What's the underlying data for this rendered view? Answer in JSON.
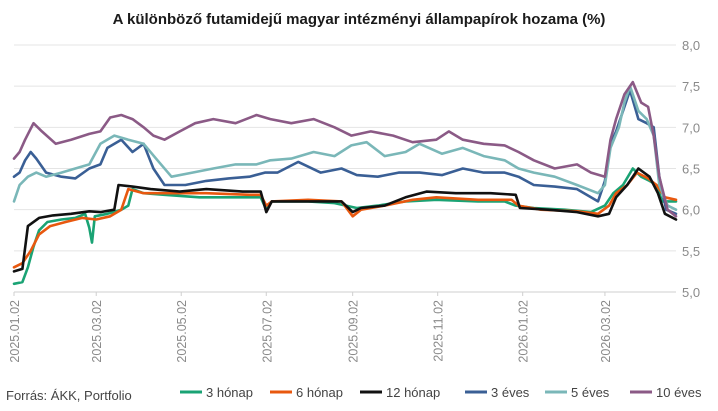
{
  "chart_data": {
    "type": "line",
    "title": "A különböző futamidejű magyar intézményi állampapírok hozama (%)",
    "source": "Forrás: ÁKK, Portfolio",
    "ylim": [
      5.0,
      8.0
    ],
    "y_ticks": [
      "5,0",
      "5,5",
      "6,0",
      "6,5",
      "7,0",
      "7,5",
      "8,0"
    ],
    "x_ticks": [
      "2025.01.02",
      "2025.03.02",
      "2025.05.02",
      "2025.07.02",
      "2025.09.02",
      "2025.11.02",
      "2026.01.02",
      "2026.03.02"
    ],
    "x_domain": [
      "2025-01-02",
      "2026-04-22"
    ],
    "grid": true,
    "y_axis_side": "right",
    "legend_position": "bottom",
    "series": [
      {
        "name": "3 hónap",
        "color": "#1aa374",
        "points": [
          [
            "2025-01-02",
            5.1
          ],
          [
            "2025-01-08",
            5.12
          ],
          [
            "2025-01-12",
            5.3
          ],
          [
            "2025-01-16",
            5.55
          ],
          [
            "2025-01-20",
            5.75
          ],
          [
            "2025-01-26",
            5.85
          ],
          [
            "2025-02-05",
            5.88
          ],
          [
            "2025-02-15",
            5.9
          ],
          [
            "2025-02-22",
            5.95
          ],
          [
            "2025-02-25",
            5.78
          ],
          [
            "2025-02-27",
            5.6
          ],
          [
            "2025-03-01",
            5.92
          ],
          [
            "2025-03-10",
            5.95
          ],
          [
            "2025-03-20",
            6.0
          ],
          [
            "2025-03-25",
            6.05
          ],
          [
            "2025-03-28",
            6.25
          ],
          [
            "2025-04-05",
            6.2
          ],
          [
            "2025-04-20",
            6.18
          ],
          [
            "2025-05-15",
            6.15
          ],
          [
            "2025-06-15",
            6.15
          ],
          [
            "2025-06-28",
            6.15
          ],
          [
            "2025-07-02",
            6.0
          ],
          [
            "2025-07-06",
            6.1
          ],
          [
            "2025-08-01",
            6.1
          ],
          [
            "2025-08-20",
            6.08
          ],
          [
            "2025-09-05",
            6.02
          ],
          [
            "2025-09-20",
            6.05
          ],
          [
            "2025-10-10",
            6.1
          ],
          [
            "2025-11-01",
            6.12
          ],
          [
            "2025-12-01",
            6.1
          ],
          [
            "2025-12-20",
            6.1
          ],
          [
            "2025-12-28",
            6.05
          ],
          [
            "2026-01-10",
            6.02
          ],
          [
            "2026-02-01",
            6.0
          ],
          [
            "2026-02-20",
            5.97
          ],
          [
            "2026-03-02",
            6.05
          ],
          [
            "2026-03-08",
            6.2
          ],
          [
            "2026-03-15",
            6.3
          ],
          [
            "2026-03-22",
            6.5
          ],
          [
            "2026-03-28",
            6.4
          ],
          [
            "2026-04-03",
            6.35
          ],
          [
            "2026-04-08",
            6.3
          ],
          [
            "2026-04-12",
            6.1
          ],
          [
            "2026-04-22",
            6.1
          ]
        ]
      },
      {
        "name": "6 hónap",
        "color": "#e8580f",
        "points": [
          [
            "2025-01-02",
            5.3
          ],
          [
            "2025-01-08",
            5.35
          ],
          [
            "2025-01-14",
            5.5
          ],
          [
            "2025-01-20",
            5.7
          ],
          [
            "2025-01-28",
            5.8
          ],
          [
            "2025-02-08",
            5.85
          ],
          [
            "2025-02-20",
            5.9
          ],
          [
            "2025-03-02",
            5.88
          ],
          [
            "2025-03-12",
            5.92
          ],
          [
            "2025-03-20",
            6.0
          ],
          [
            "2025-03-25",
            6.25
          ],
          [
            "2025-04-05",
            6.2
          ],
          [
            "2025-04-25",
            6.2
          ],
          [
            "2025-05-20",
            6.2
          ],
          [
            "2025-06-20",
            6.18
          ],
          [
            "2025-06-28",
            6.18
          ],
          [
            "2025-07-02",
            6.05
          ],
          [
            "2025-07-06",
            6.1
          ],
          [
            "2025-08-01",
            6.12
          ],
          [
            "2025-08-25",
            6.1
          ],
          [
            "2025-09-02",
            5.92
          ],
          [
            "2025-09-08",
            6.0
          ],
          [
            "2025-09-25",
            6.05
          ],
          [
            "2025-10-15",
            6.12
          ],
          [
            "2025-11-01",
            6.15
          ],
          [
            "2025-12-01",
            6.12
          ],
          [
            "2025-12-25",
            6.12
          ],
          [
            "2025-12-30",
            6.05
          ],
          [
            "2026-01-15",
            6.0
          ],
          [
            "2026-02-10",
            5.98
          ],
          [
            "2026-02-25",
            5.95
          ],
          [
            "2026-03-05",
            6.05
          ],
          [
            "2026-03-10",
            6.2
          ],
          [
            "2026-03-18",
            6.3
          ],
          [
            "2026-03-25",
            6.45
          ],
          [
            "2026-04-02",
            6.38
          ],
          [
            "2026-04-08",
            6.3
          ],
          [
            "2026-04-14",
            6.15
          ],
          [
            "2026-04-22",
            6.12
          ]
        ]
      },
      {
        "name": "12 hónap",
        "color": "#111111",
        "points": [
          [
            "2025-01-02",
            5.25
          ],
          [
            "2025-01-08",
            5.28
          ],
          [
            "2025-01-12",
            5.8
          ],
          [
            "2025-01-20",
            5.9
          ],
          [
            "2025-01-30",
            5.93
          ],
          [
            "2025-02-12",
            5.95
          ],
          [
            "2025-02-25",
            5.98
          ],
          [
            "2025-03-05",
            5.97
          ],
          [
            "2025-03-15",
            6.0
          ],
          [
            "2025-03-18",
            6.3
          ],
          [
            "2025-03-28",
            6.28
          ],
          [
            "2025-04-10",
            6.25
          ],
          [
            "2025-05-01",
            6.22
          ],
          [
            "2025-05-20",
            6.25
          ],
          [
            "2025-06-15",
            6.22
          ],
          [
            "2025-06-28",
            6.22
          ],
          [
            "2025-07-02",
            5.97
          ],
          [
            "2025-07-06",
            6.1
          ],
          [
            "2025-08-01",
            6.1
          ],
          [
            "2025-08-25",
            6.1
          ],
          [
            "2025-09-02",
            5.97
          ],
          [
            "2025-09-08",
            6.02
          ],
          [
            "2025-09-25",
            6.05
          ],
          [
            "2025-10-10",
            6.15
          ],
          [
            "2025-10-25",
            6.22
          ],
          [
            "2025-11-15",
            6.2
          ],
          [
            "2025-12-10",
            6.2
          ],
          [
            "2025-12-28",
            6.18
          ],
          [
            "2025-12-31",
            6.02
          ],
          [
            "2026-01-20",
            6.0
          ],
          [
            "2026-02-10",
            5.97
          ],
          [
            "2026-02-25",
            5.92
          ],
          [
            "2026-03-05",
            5.95
          ],
          [
            "2026-03-10",
            6.15
          ],
          [
            "2026-03-18",
            6.3
          ],
          [
            "2026-03-26",
            6.5
          ],
          [
            "2026-04-03",
            6.4
          ],
          [
            "2026-04-09",
            6.2
          ],
          [
            "2026-04-14",
            5.95
          ],
          [
            "2026-04-22",
            5.88
          ]
        ]
      },
      {
        "name": "3 éves",
        "color": "#3a5f95",
        "points": [
          [
            "2025-01-02",
            6.4
          ],
          [
            "2025-01-06",
            6.45
          ],
          [
            "2025-01-10",
            6.6
          ],
          [
            "2025-01-14",
            6.7
          ],
          [
            "2025-01-18",
            6.62
          ],
          [
            "2025-01-25",
            6.45
          ],
          [
            "2025-02-05",
            6.4
          ],
          [
            "2025-02-15",
            6.38
          ],
          [
            "2025-02-25",
            6.5
          ],
          [
            "2025-03-05",
            6.55
          ],
          [
            "2025-03-10",
            6.75
          ],
          [
            "2025-03-20",
            6.85
          ],
          [
            "2025-03-28",
            6.7
          ],
          [
            "2025-04-05",
            6.8
          ],
          [
            "2025-04-12",
            6.5
          ],
          [
            "2025-04-20",
            6.3
          ],
          [
            "2025-05-05",
            6.3
          ],
          [
            "2025-05-20",
            6.35
          ],
          [
            "2025-06-05",
            6.38
          ],
          [
            "2025-06-20",
            6.4
          ],
          [
            "2025-07-01",
            6.45
          ],
          [
            "2025-07-10",
            6.45
          ],
          [
            "2025-07-25",
            6.58
          ],
          [
            "2025-08-10",
            6.45
          ],
          [
            "2025-08-25",
            6.5
          ],
          [
            "2025-09-05",
            6.42
          ],
          [
            "2025-09-20",
            6.4
          ],
          [
            "2025-10-05",
            6.45
          ],
          [
            "2025-10-20",
            6.45
          ],
          [
            "2025-11-05",
            6.42
          ],
          [
            "2025-11-20",
            6.5
          ],
          [
            "2025-12-05",
            6.45
          ],
          [
            "2025-12-20",
            6.45
          ],
          [
            "2025-12-30",
            6.4
          ],
          [
            "2026-01-10",
            6.3
          ],
          [
            "2026-01-25",
            6.28
          ],
          [
            "2026-02-10",
            6.25
          ],
          [
            "2026-02-25",
            6.1
          ],
          [
            "2026-03-02",
            6.35
          ],
          [
            "2026-03-06",
            6.8
          ],
          [
            "2026-03-10",
            6.95
          ],
          [
            "2026-03-16",
            7.25
          ],
          [
            "2026-03-20",
            7.45
          ],
          [
            "2026-03-26",
            7.1
          ],
          [
            "2026-04-01",
            7.05
          ],
          [
            "2026-04-06",
            7.0
          ],
          [
            "2026-04-10",
            6.4
          ],
          [
            "2026-04-15",
            6.0
          ],
          [
            "2026-04-22",
            5.95
          ]
        ]
      },
      {
        "name": "5 éves",
        "color": "#7ab7b8",
        "points": [
          [
            "2025-01-02",
            6.1
          ],
          [
            "2025-01-06",
            6.3
          ],
          [
            "2025-01-12",
            6.4
          ],
          [
            "2025-01-18",
            6.45
          ],
          [
            "2025-01-25",
            6.4
          ],
          [
            "2025-02-05",
            6.45
          ],
          [
            "2025-02-15",
            6.5
          ],
          [
            "2025-02-25",
            6.55
          ],
          [
            "2025-03-05",
            6.8
          ],
          [
            "2025-03-15",
            6.9
          ],
          [
            "2025-03-25",
            6.85
          ],
          [
            "2025-04-05",
            6.8
          ],
          [
            "2025-04-15",
            6.6
          ],
          [
            "2025-04-25",
            6.4
          ],
          [
            "2025-05-10",
            6.45
          ],
          [
            "2025-05-25",
            6.5
          ],
          [
            "2025-06-10",
            6.55
          ],
          [
            "2025-06-25",
            6.55
          ],
          [
            "2025-07-05",
            6.6
          ],
          [
            "2025-07-20",
            6.62
          ],
          [
            "2025-08-05",
            6.7
          ],
          [
            "2025-08-20",
            6.65
          ],
          [
            "2025-09-01",
            6.78
          ],
          [
            "2025-09-12",
            6.82
          ],
          [
            "2025-09-25",
            6.65
          ],
          [
            "2025-10-10",
            6.7
          ],
          [
            "2025-10-20",
            6.8
          ],
          [
            "2025-11-05",
            6.68
          ],
          [
            "2025-11-20",
            6.75
          ],
          [
            "2025-12-05",
            6.65
          ],
          [
            "2025-12-20",
            6.6
          ],
          [
            "2025-12-30",
            6.5
          ],
          [
            "2026-01-10",
            6.45
          ],
          [
            "2026-01-25",
            6.4
          ],
          [
            "2026-02-10",
            6.3
          ],
          [
            "2026-02-25",
            6.2
          ],
          [
            "2026-03-02",
            6.3
          ],
          [
            "2026-03-06",
            6.75
          ],
          [
            "2026-03-12",
            7.0
          ],
          [
            "2026-03-16",
            7.3
          ],
          [
            "2026-03-20",
            7.5
          ],
          [
            "2026-03-26",
            7.2
          ],
          [
            "2026-04-01",
            7.1
          ],
          [
            "2026-04-06",
            6.9
          ],
          [
            "2026-04-10",
            6.3
          ],
          [
            "2026-04-16",
            6.05
          ],
          [
            "2026-04-22",
            6.0
          ]
        ]
      },
      {
        "name": "10 éves",
        "color": "#8b5a86",
        "points": [
          [
            "2025-01-02",
            6.62
          ],
          [
            "2025-01-06",
            6.7
          ],
          [
            "2025-01-10",
            6.85
          ],
          [
            "2025-01-16",
            7.05
          ],
          [
            "2025-01-22",
            6.95
          ],
          [
            "2025-02-01",
            6.8
          ],
          [
            "2025-02-12",
            6.85
          ],
          [
            "2025-02-25",
            6.92
          ],
          [
            "2025-03-05",
            6.95
          ],
          [
            "2025-03-12",
            7.12
          ],
          [
            "2025-03-20",
            7.15
          ],
          [
            "2025-03-28",
            7.1
          ],
          [
            "2025-04-05",
            7.0
          ],
          [
            "2025-04-12",
            6.9
          ],
          [
            "2025-04-20",
            6.85
          ],
          [
            "2025-05-01",
            6.95
          ],
          [
            "2025-05-12",
            7.05
          ],
          [
            "2025-05-25",
            7.1
          ],
          [
            "2025-06-10",
            7.05
          ],
          [
            "2025-06-25",
            7.15
          ],
          [
            "2025-07-05",
            7.1
          ],
          [
            "2025-07-20",
            7.05
          ],
          [
            "2025-08-05",
            7.1
          ],
          [
            "2025-08-20",
            7.0
          ],
          [
            "2025-09-01",
            6.9
          ],
          [
            "2025-09-15",
            6.95
          ],
          [
            "2025-10-01",
            6.9
          ],
          [
            "2025-10-15",
            6.82
          ],
          [
            "2025-11-01",
            6.85
          ],
          [
            "2025-11-10",
            6.95
          ],
          [
            "2025-11-20",
            6.85
          ],
          [
            "2025-12-05",
            6.8
          ],
          [
            "2025-12-20",
            6.78
          ],
          [
            "2025-12-30",
            6.7
          ],
          [
            "2026-01-10",
            6.6
          ],
          [
            "2026-01-25",
            6.5
          ],
          [
            "2026-02-10",
            6.55
          ],
          [
            "2026-02-20",
            6.45
          ],
          [
            "2026-03-02",
            6.4
          ],
          [
            "2026-03-06",
            6.85
          ],
          [
            "2026-03-10",
            7.1
          ],
          [
            "2026-03-16",
            7.4
          ],
          [
            "2026-03-22",
            7.55
          ],
          [
            "2026-03-28",
            7.3
          ],
          [
            "2026-04-02",
            7.25
          ],
          [
            "2026-04-06",
            6.9
          ],
          [
            "2026-04-10",
            6.4
          ],
          [
            "2026-04-16",
            6.0
          ],
          [
            "2026-04-22",
            5.92
          ]
        ]
      }
    ]
  }
}
